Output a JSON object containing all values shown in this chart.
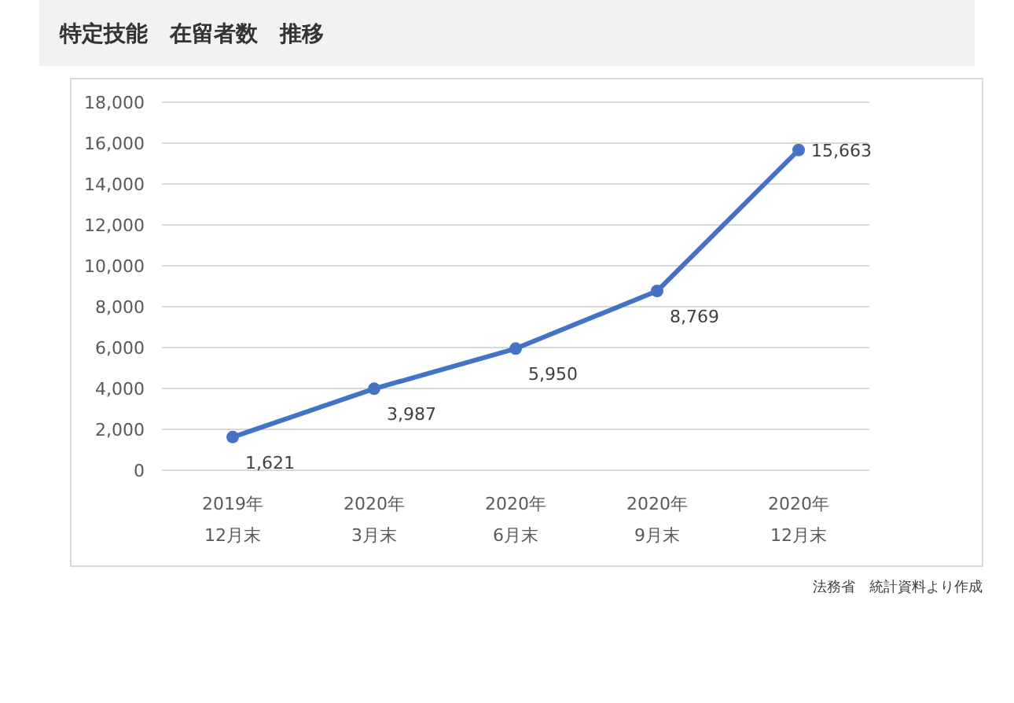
{
  "chart_data": {
    "type": "line",
    "title": "特定技能　在留者数　推移",
    "categories": [
      "2019年 12月末",
      "2020年 3月末",
      "2020年 6月末",
      "2020年 9月末",
      "2020年 12月末"
    ],
    "series": [
      {
        "color": "#4472c4",
        "values": [
          1621,
          3987,
          5950,
          8769,
          15663
        ]
      }
    ],
    "ylim": [
      0,
      18000
    ],
    "yticks": [
      {
        "value": 0,
        "label": "0"
      },
      {
        "value": 2000,
        "label": "2,000"
      },
      {
        "value": 4000,
        "label": "4,000"
      },
      {
        "value": 6000,
        "label": "6,000"
      },
      {
        "value": 8000,
        "label": "8,000"
      },
      {
        "value": 10000,
        "label": "10,000"
      },
      {
        "value": 12000,
        "label": "12,000"
      },
      {
        "value": 14000,
        "label": "14,000"
      },
      {
        "value": 16000,
        "label": "16,000"
      },
      {
        "value": 18000,
        "label": "18,000"
      }
    ],
    "grid": "y",
    "marker": "circle",
    "line_style": "solid",
    "value_labels": [
      "1,621",
      "3,987",
      "5,950",
      "8,769",
      "15,663"
    ],
    "annotations": [
      "法務省　統計資料より作成"
    ]
  }
}
